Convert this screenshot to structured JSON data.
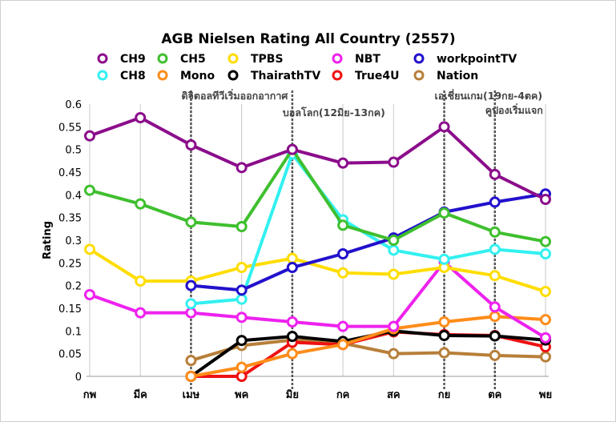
{
  "chart_data": {
    "type": "line",
    "title": "AGB Nielsen Rating All Country (2557)",
    "xlabel": "",
    "ylabel": "Rating",
    "categories": [
      "กพ",
      "มีค",
      "เมษ",
      "พค",
      "มิย",
      "กค",
      "สค",
      "กย",
      "ตค",
      "พย"
    ],
    "ylim": [
      0,
      0.6
    ],
    "yticks": [
      "0",
      "0.05",
      "0.1",
      "0.15",
      "0.2",
      "0.25",
      "0.3",
      "0.35",
      "0.4",
      "0.45",
      "0.5",
      "0.55",
      "0.6"
    ],
    "grid": "vertical",
    "legend_position": "top",
    "series": [
      {
        "name": "CH9",
        "color": "#8b0d8b",
        "values": [
          0.53,
          0.57,
          0.51,
          0.46,
          0.5,
          0.47,
          0.472,
          0.55,
          0.445,
          0.39
        ]
      },
      {
        "name": "CH8",
        "color": "#33f0f0",
        "values": [
          null,
          null,
          0.16,
          0.17,
          0.49,
          0.345,
          0.278,
          0.258,
          0.28,
          0.27
        ]
      },
      {
        "name": "CH5",
        "color": "#3fbf2f",
        "values": [
          0.41,
          0.38,
          0.34,
          0.33,
          0.5,
          0.333,
          0.3,
          0.36,
          0.318,
          0.297
        ]
      },
      {
        "name": "Mono",
        "color": "#ff8c1a",
        "values": [
          null,
          null,
          0.0,
          0.02,
          0.05,
          0.07,
          0.105,
          0.12,
          0.132,
          0.125
        ]
      },
      {
        "name": "TPBS",
        "color": "#ffdd00",
        "values": [
          0.28,
          0.21,
          0.21,
          0.24,
          0.26,
          0.228,
          0.225,
          0.24,
          0.222,
          0.187
        ]
      },
      {
        "name": "ThairathTV",
        "color": "#000000",
        "values": [
          null,
          null,
          0.0,
          0.079,
          0.088,
          0.077,
          0.1,
          0.09,
          0.089,
          0.08
        ]
      },
      {
        "name": "NBT",
        "color": "#ee22ee",
        "values": [
          0.18,
          0.14,
          0.14,
          0.13,
          0.12,
          0.11,
          0.11,
          0.252,
          0.153,
          0.085
        ]
      },
      {
        "name": "True4U",
        "color": "#ee1111",
        "values": [
          null,
          null,
          0.0,
          0.0,
          0.075,
          0.07,
          0.098,
          0.092,
          0.09,
          0.065
        ]
      },
      {
        "name": "workpointTV",
        "color": "#2211cc",
        "values": [
          null,
          null,
          0.2,
          0.19,
          0.24,
          0.27,
          0.305,
          0.362,
          0.384,
          0.402
        ]
      },
      {
        "name": "Nation",
        "color": "#b87f3a",
        "values": [
          null,
          null,
          0.035,
          0.068,
          0.08,
          0.073,
          0.05,
          0.052,
          0.046,
          0.043
        ]
      }
    ],
    "annotations": [
      {
        "text": "ดิจิตอลทีวีเริ่มออกอากาศ",
        "at_category": "เมษ"
      },
      {
        "text": "บอลโลก(12มิย-13กค)",
        "at_category": "มิย"
      },
      {
        "text": "เอเชี่ยนเกม(19กย-4ตค)",
        "at_category": "กย"
      },
      {
        "text": "คูปองเริ่มแจก",
        "at_category": "ตค"
      }
    ]
  }
}
